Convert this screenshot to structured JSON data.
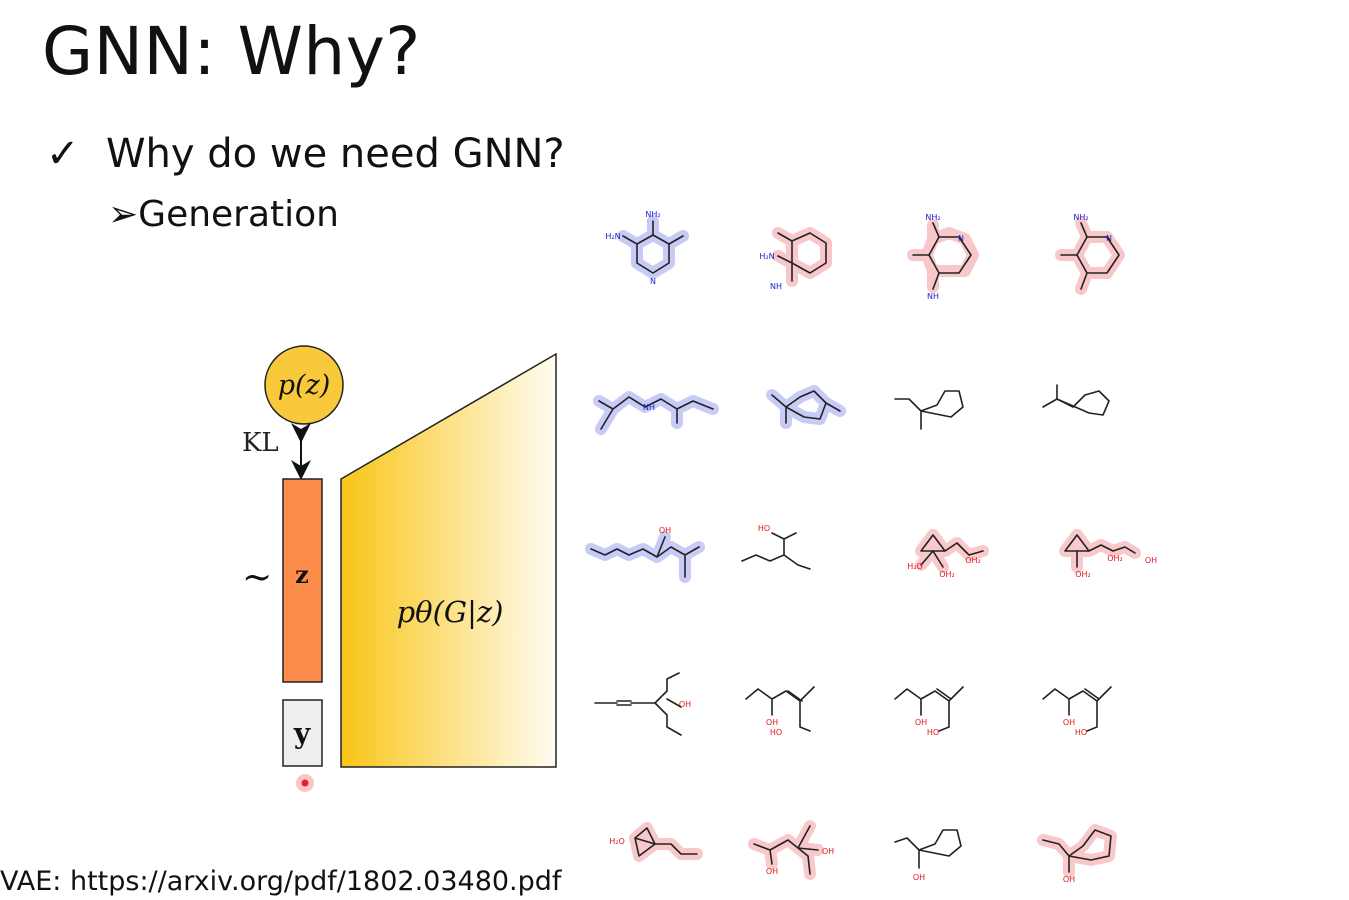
{
  "slide": {
    "title": "GNN: Why?",
    "bullet_mark": "✓",
    "bullet_text": "Why do we need GNN?",
    "sub_mark": "➢",
    "sub_text": "Generation",
    "citation": "VAE: https://arxiv.org/pdf/1802.03480.pdf"
  },
  "diagram": {
    "prior_label": "p(z)",
    "kl_label": "KL",
    "tilde": "~",
    "latent_label": "z",
    "condition_label": "y",
    "decoder_label": "pθ(G|z)",
    "colors": {
      "prior_fill": "#f8c93a",
      "latent_fill": "#fb8c4a",
      "condition_fill": "#efefef",
      "decoder_start": "#f9c518",
      "decoder_end": "#fffdf2",
      "red_dot": "#e8202a"
    }
  },
  "molecule_grid": {
    "rows": 5,
    "cols": 4,
    "highlight_colors": {
      "blue": "#9aa0ee",
      "red": "#f4a3a8"
    },
    "atom_colors": {
      "N": "#2020cc",
      "O": "#e01818",
      "F": "#38c8c8"
    },
    "atom_labels": {
      "r1c1": [
        "NH₂",
        "H₂N",
        "N"
      ],
      "r1c2": [
        "H₂N",
        "NH"
      ],
      "r1c3": [
        "NH₂",
        "N",
        "NH"
      ],
      "r1c4": [
        "NH₂",
        "N"
      ],
      "r2c1": [
        "NH"
      ],
      "r3c1": [
        "OH"
      ],
      "r3c2": [
        "HO"
      ],
      "r3c3": [
        "H₂O",
        "OH₂",
        "OH₂"
      ],
      "r3c4": [
        "OH₂",
        "OH₂",
        "OH"
      ],
      "r4c1": [
        "OH"
      ],
      "r4c2": [
        "OH",
        "HO"
      ],
      "r4c3": [
        "OH",
        "HO"
      ],
      "r4c4": [
        "OH",
        "HO"
      ],
      "r5c1": [
        "H₂O"
      ],
      "r5c2": [
        "OH",
        "OH"
      ],
      "r5c3": [
        "OH"
      ],
      "r5c4": [
        "OH"
      ]
    }
  }
}
